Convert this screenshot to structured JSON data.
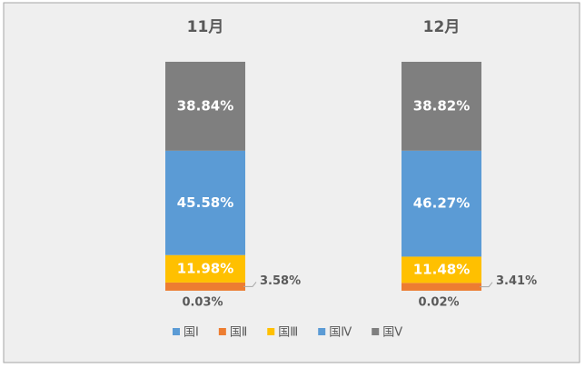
{
  "chart_data": {
    "type": "stacked-bar",
    "categories": [
      "11月",
      "12月"
    ],
    "series": [
      {
        "name": "国Ⅰ",
        "color": "#5b9bd5",
        "values": [
          0.03,
          0.02
        ],
        "value_labels": [
          "0.03%",
          "0.02%"
        ]
      },
      {
        "name": "国Ⅱ",
        "color": "#ed7d31",
        "values": [
          3.58,
          3.41
        ],
        "value_labels": [
          "3.58%",
          "3.41%"
        ]
      },
      {
        "name": "国Ⅲ",
        "color": "#ffc000",
        "values": [
          11.98,
          11.48
        ],
        "value_labels": [
          "11.98%",
          "11.48%"
        ]
      },
      {
        "name": "国Ⅳ",
        "color": "#5b9bd5",
        "values": [
          45.58,
          46.27
        ],
        "value_labels": [
          "45.58%",
          "46.27%"
        ]
      },
      {
        "name": "国Ⅴ",
        "color": "#7f7f7f",
        "values": [
          38.84,
          38.82
        ],
        "value_labels": [
          "38.84%",
          "38.82%"
        ]
      }
    ],
    "ylim": [
      0,
      100
    ],
    "legend": "bottom"
  }
}
